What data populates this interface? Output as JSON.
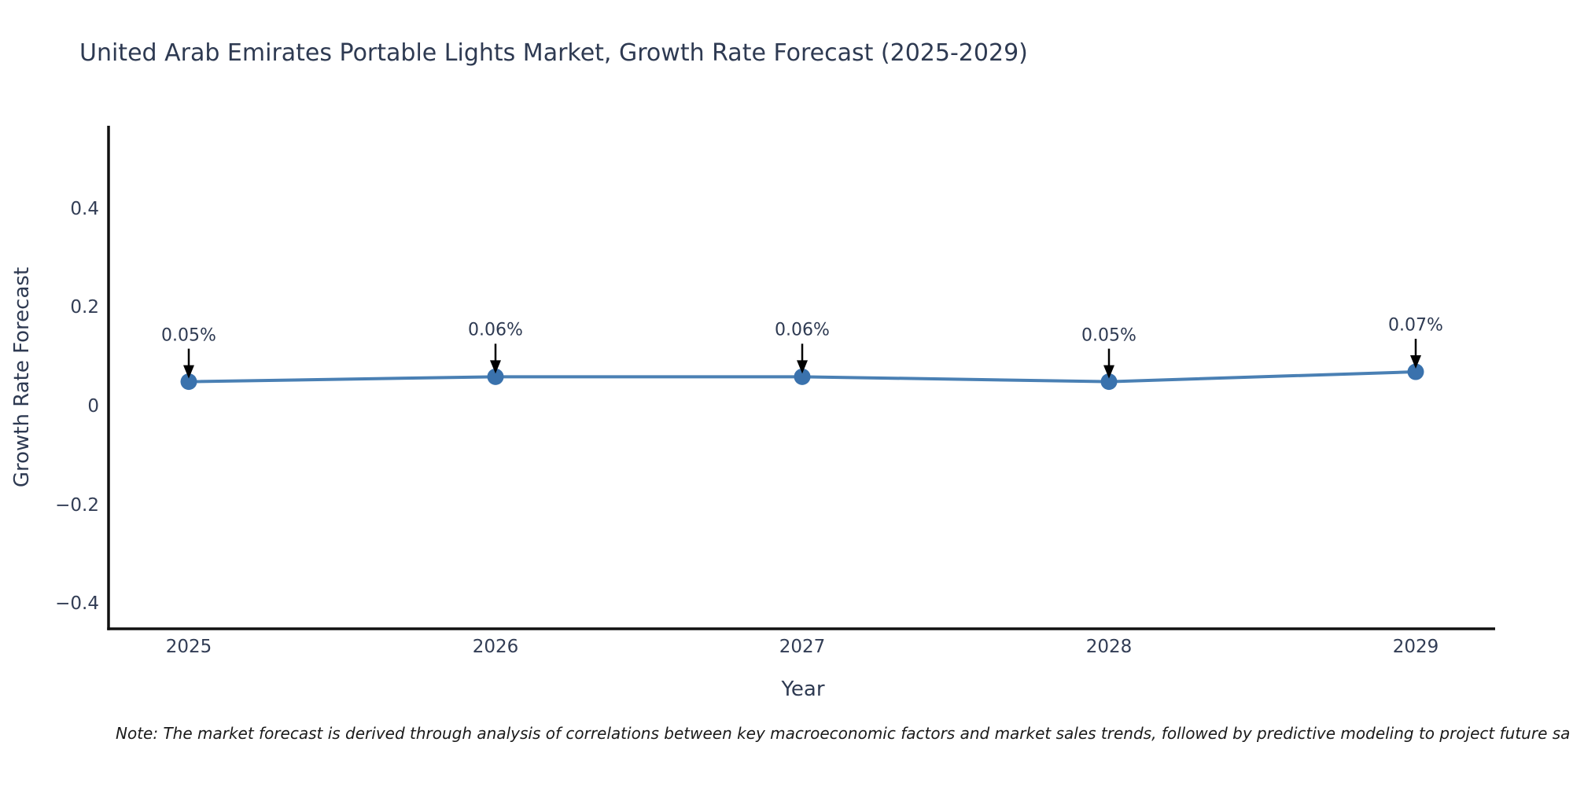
{
  "title": "United Arab Emirates Portable Lights Market, Growth Rate Forecast (2025-2029)",
  "note": "Note: The market forecast is derived through analysis of correlations between key macroeconomic factors and market sales trends, followed by predictive modeling to project future sa",
  "chart_data": {
    "type": "line",
    "title": "United Arab Emirates Portable Lights Market, Growth Rate Forecast (2025-2029)",
    "xlabel": "Year",
    "ylabel": "Growth Rate Forecast",
    "x": [
      2025,
      2026,
      2027,
      2028,
      2029
    ],
    "values": [
      0.05,
      0.06,
      0.06,
      0.05,
      0.07
    ],
    "point_labels": [
      "0.05%",
      "0.06%",
      "0.06%",
      "0.05%",
      "0.07%"
    ],
    "xtick_labels": [
      "2025",
      "2026",
      "2027",
      "2028",
      "2029"
    ],
    "yticks": [
      0.4,
      0.2,
      0,
      -0.2,
      -0.4
    ],
    "ytick_labels": [
      "0.4",
      "0.2",
      "0",
      "−0.2",
      "−0.4"
    ],
    "ylim": [
      -0.45,
      0.57
    ],
    "grid": false,
    "legend": "none",
    "annotation_style": "down-arrow",
    "colors": {
      "line": "#4a80b4",
      "marker": "#3a72ad",
      "text": "#2e3a52",
      "axis": "#111111",
      "arrow": "#000000",
      "note_text": "#1a1a1a"
    }
  }
}
